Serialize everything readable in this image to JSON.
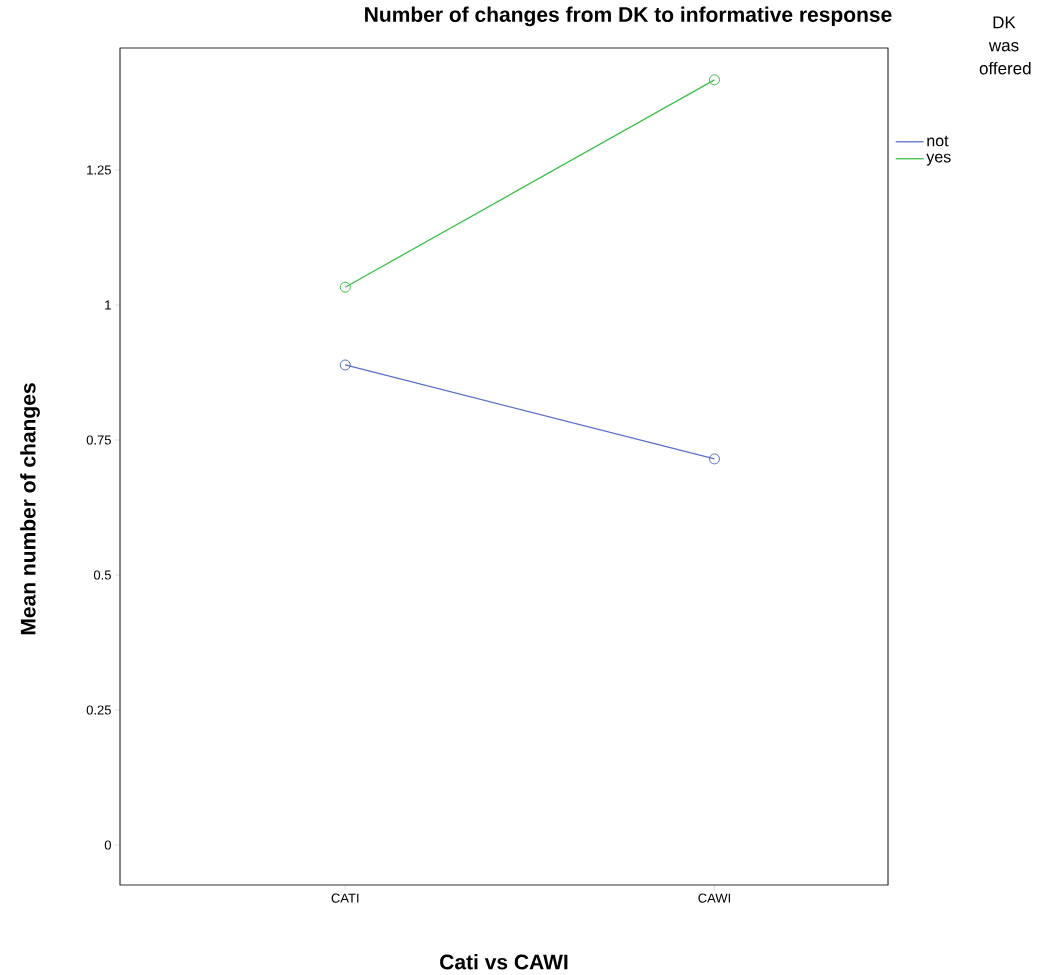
{
  "chart_data": {
    "type": "line",
    "title": "Number of changes from DK to informative response",
    "xlabel": "Cati vs CAWI",
    "ylabel": "Mean number of changes",
    "legend_title": "DK was offered",
    "categories": [
      "CATI",
      "CAWI"
    ],
    "series": [
      {
        "name": "not",
        "color": "#5b6fc8",
        "values": [
          0.889,
          0.715
        ]
      },
      {
        "name": "yes",
        "color": "#3dbf4a",
        "values": [
          1.033,
          1.417
        ]
      }
    ],
    "ylim": [
      -0.074,
      1.476
    ],
    "yticks": [
      0,
      {
        "value": 0.25,
        "label": "0.25"
      },
      {
        "value": 0.5,
        "label": "0.5"
      },
      {
        "value": 0.75,
        "label": "0.75"
      },
      1,
      {
        "value": 1.25,
        "label": "1.25"
      }
    ],
    "grid": false,
    "legend": "top right",
    "marker": "circle",
    "line_style": "solid"
  }
}
